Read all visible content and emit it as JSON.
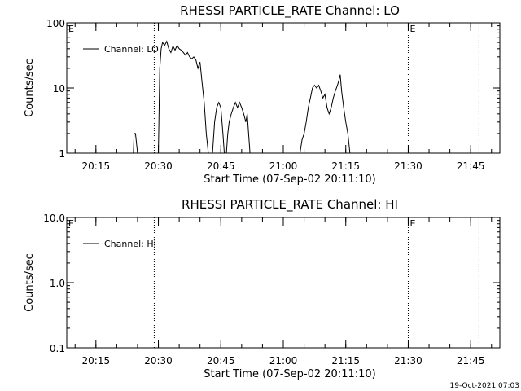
{
  "chart_data": [
    {
      "type": "line",
      "title": "RHESSI PARTICLE_RATE Channel: LO",
      "xlabel": "Start Time (07-Sep-02 20:11:10)",
      "ylabel": "Counts/sec",
      "yscale": "log",
      "ylim": [
        1,
        100
      ],
      "yticks": [
        "1",
        "10",
        "100"
      ],
      "xlim": [
        "20:08",
        "21:52"
      ],
      "xticks": [
        "20:15",
        "20:30",
        "20:45",
        "21:00",
        "21:15",
        "21:30",
        "21:45"
      ],
      "legend": {
        "placement": "top-left",
        "entries": [
          "Channel: LO"
        ]
      },
      "markers": [
        {
          "time": "20:29",
          "label": ""
        },
        {
          "time": "21:30",
          "label": "E"
        },
        {
          "time": "21:47",
          "label": ""
        }
      ],
      "edge_labels": [
        "E"
      ],
      "series": [
        {
          "name": "Channel: LO",
          "points": [
            [
              "20:24:00",
              1
            ],
            [
              "20:24:10",
              2
            ],
            [
              "20:24:30",
              2
            ],
            [
              "20:25:00",
              1
            ],
            [
              "20:27:00",
              1
            ],
            [
              "20:30:00",
              1
            ],
            [
              "20:30:20",
              20
            ],
            [
              "20:30:40",
              40
            ],
            [
              "20:31:00",
              50
            ],
            [
              "20:31:30",
              45
            ],
            [
              "20:32:00",
              52
            ],
            [
              "20:32:30",
              40
            ],
            [
              "20:33:00",
              35
            ],
            [
              "20:33:30",
              44
            ],
            [
              "20:34:00",
              38
            ],
            [
              "20:34:30",
              45
            ],
            [
              "20:35:00",
              40
            ],
            [
              "20:35:30",
              38
            ],
            [
              "20:36:00",
              35
            ],
            [
              "20:36:30",
              32
            ],
            [
              "20:37:00",
              35
            ],
            [
              "20:37:30",
              30
            ],
            [
              "20:38:00",
              28
            ],
            [
              "20:38:30",
              30
            ],
            [
              "20:39:00",
              27
            ],
            [
              "20:39:30",
              20
            ],
            [
              "20:40:00",
              25
            ],
            [
              "20:40:30",
              12
            ],
            [
              "20:41:00",
              6
            ],
            [
              "20:41:30",
              2
            ],
            [
              "20:42:00",
              1
            ],
            [
              "20:43:00",
              1
            ],
            [
              "20:43:30",
              3
            ],
            [
              "20:44:00",
              5
            ],
            [
              "20:44:30",
              6
            ],
            [
              "20:45:00",
              5
            ],
            [
              "20:45:30",
              2
            ],
            [
              "20:45:50",
              1
            ],
            [
              "20:46:20",
              1
            ],
            [
              "20:46:40",
              2
            ],
            [
              "20:47:00",
              3
            ],
            [
              "20:47:30",
              4
            ],
            [
              "20:48:00",
              5
            ],
            [
              "20:48:30",
              6
            ],
            [
              "20:49:00",
              5
            ],
            [
              "20:49:30",
              6
            ],
            [
              "20:50:00",
              5
            ],
            [
              "20:50:30",
              4
            ],
            [
              "20:51:00",
              3
            ],
            [
              "20:51:20",
              4
            ],
            [
              "20:51:40",
              2
            ],
            [
              "20:52:00",
              1
            ],
            [
              "21:04:00",
              1
            ],
            [
              "21:04:30",
              1.6
            ],
            [
              "21:05:00",
              2
            ],
            [
              "21:05:30",
              3
            ],
            [
              "21:06:00",
              5
            ],
            [
              "21:06:30",
              7
            ],
            [
              "21:07:00",
              10
            ],
            [
              "21:07:30",
              11
            ],
            [
              "21:08:00",
              10
            ],
            [
              "21:08:30",
              11
            ],
            [
              "21:09:00",
              9
            ],
            [
              "21:09:30",
              7
            ],
            [
              "21:10:00",
              8
            ],
            [
              "21:10:30",
              5
            ],
            [
              "21:11:00",
              4
            ],
            [
              "21:11:30",
              5
            ],
            [
              "21:12:00",
              7
            ],
            [
              "21:12:30",
              9
            ],
            [
              "21:13:00",
              11
            ],
            [
              "21:13:20",
              13
            ],
            [
              "21:13:40",
              16
            ],
            [
              "21:14:00",
              9
            ],
            [
              "21:14:30",
              5
            ],
            [
              "21:15:00",
              3
            ],
            [
              "21:15:30",
              2
            ],
            [
              "21:16:00",
              1
            ]
          ]
        }
      ]
    },
    {
      "type": "line",
      "title": "RHESSI PARTICLE_RATE Channel: HI",
      "xlabel": "Start Time (07-Sep-02 20:11:10)",
      "ylabel": "Counts/sec",
      "yscale": "log",
      "ylim": [
        0.1,
        10
      ],
      "yticks": [
        "0.1",
        "1.0",
        "10.0"
      ],
      "xlim": [
        "20:08",
        "21:52"
      ],
      "xticks": [
        "20:15",
        "20:30",
        "20:45",
        "21:00",
        "21:15",
        "21:30",
        "21:45"
      ],
      "legend": {
        "placement": "top-left",
        "entries": [
          "Channel: HI"
        ]
      },
      "markers": [
        {
          "time": "20:29",
          "label": ""
        },
        {
          "time": "21:30",
          "label": "E"
        },
        {
          "time": "21:47",
          "label": ""
        }
      ],
      "edge_labels": [
        "E"
      ],
      "series": [
        {
          "name": "Channel: HI",
          "points": []
        }
      ]
    }
  ],
  "footer": {
    "timestamp": "19-Oct-2021 07:03"
  }
}
